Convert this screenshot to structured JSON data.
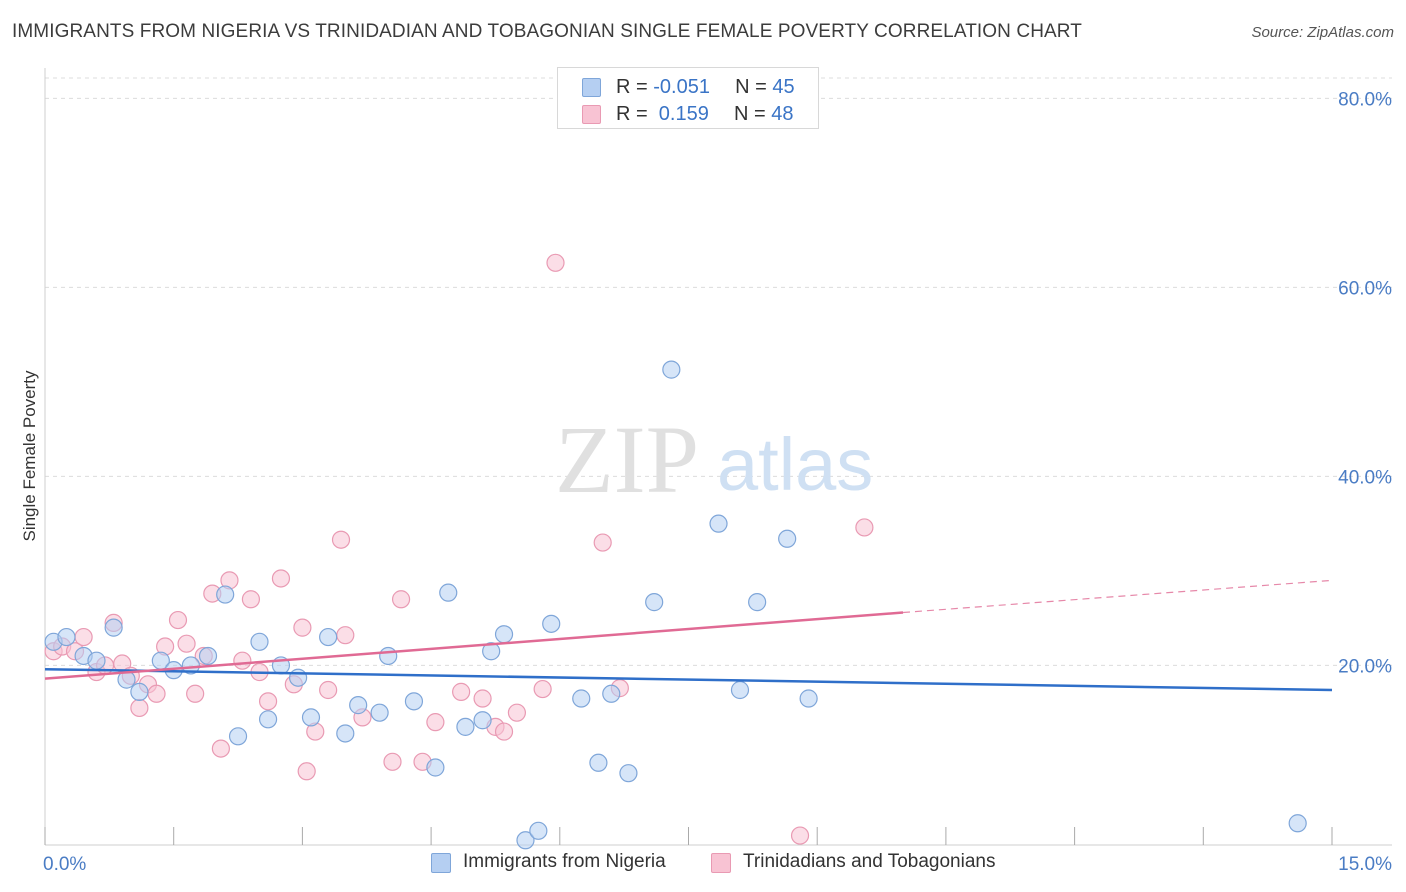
{
  "title": "IMMIGRANTS FROM NIGERIA VS TRINIDADIAN AND TOBAGONIAN SINGLE FEMALE POVERTY CORRELATION CHART",
  "source": "Source: ZipAtlas.com",
  "watermark": {
    "zip": "ZIP",
    "atlas": "atlas"
  },
  "legend": {
    "series_a": {
      "r_label": "R = ",
      "r_value": "-0.051",
      "n_label": "N = ",
      "n_value": "45"
    },
    "series_b": {
      "r_label": "R = ",
      "r_value": " 0.159",
      "n_label": "N = ",
      "n_value": "48"
    }
  },
  "colors": {
    "series_a_fill": "#b5cff2",
    "series_a_stroke": "#7fa6d9",
    "series_a_line": "#2f6fc9",
    "series_b_fill": "#f8c3d3",
    "series_b_stroke": "#e99ab3",
    "series_b_line": "#e06a94",
    "grid": "#dcdcdc",
    "axis": "#888888",
    "tick_text": "#4a7cc4"
  },
  "chart_data": {
    "type": "scatter",
    "title": "IMMIGRANTS FROM NIGERIA VS TRINIDADIAN AND TOBAGONIAN SINGLE FEMALE POVERTY CORRELATION CHART",
    "xlabel": "",
    "ylabel": "Single Female Poverty",
    "xlim": [
      0,
      15
    ],
    "ylim": [
      1,
      83
    ],
    "x_tick_labels": [
      "0.0%",
      "15.0%"
    ],
    "y_ticks": [
      20,
      40,
      60,
      80
    ],
    "y_tick_labels": [
      "20.0%",
      "40.0%",
      "60.0%",
      "80.0%"
    ],
    "grid": true,
    "legend_position": "bottom",
    "series": [
      {
        "name": "Immigrants from Nigeria",
        "color": "#b5cff2",
        "points": [
          [
            0.1,
            22.5
          ],
          [
            0.25,
            23.0
          ],
          [
            0.45,
            21.0
          ],
          [
            0.6,
            20.5
          ],
          [
            0.8,
            24.0
          ],
          [
            0.95,
            18.5
          ],
          [
            1.1,
            17.2
          ],
          [
            1.35,
            20.5
          ],
          [
            1.5,
            19.5
          ],
          [
            1.7,
            20.0
          ],
          [
            1.9,
            21.0
          ],
          [
            2.1,
            27.5
          ],
          [
            2.25,
            12.5
          ],
          [
            2.5,
            22.5
          ],
          [
            2.6,
            14.3
          ],
          [
            2.75,
            20.0
          ],
          [
            2.95,
            18.7
          ],
          [
            3.1,
            14.5
          ],
          [
            3.3,
            23.0
          ],
          [
            3.5,
            12.8
          ],
          [
            3.65,
            15.8
          ],
          [
            3.9,
            15.0
          ],
          [
            4.0,
            21.0
          ],
          [
            4.3,
            16.2
          ],
          [
            4.55,
            9.2
          ],
          [
            4.7,
            27.7
          ],
          [
            4.9,
            13.5
          ],
          [
            5.1,
            14.2
          ],
          [
            5.2,
            21.5
          ],
          [
            5.35,
            23.3
          ],
          [
            5.6,
            1.5
          ],
          [
            5.75,
            2.5
          ],
          [
            5.9,
            24.4
          ],
          [
            6.25,
            16.5
          ],
          [
            6.45,
            9.7
          ],
          [
            6.6,
            17.0
          ],
          [
            6.8,
            8.6
          ],
          [
            7.1,
            26.7
          ],
          [
            7.3,
            51.3
          ],
          [
            7.85,
            35.0
          ],
          [
            8.1,
            17.4
          ],
          [
            8.3,
            26.7
          ],
          [
            8.65,
            33.4
          ],
          [
            8.9,
            16.5
          ],
          [
            14.6,
            3.3
          ]
        ]
      },
      {
        "name": "Trinidadians and Tobagonians",
        "color": "#f8c3d3",
        "points": [
          [
            0.1,
            21.5
          ],
          [
            0.2,
            22.0
          ],
          [
            0.35,
            21.5
          ],
          [
            0.45,
            23.0
          ],
          [
            0.6,
            19.3
          ],
          [
            0.7,
            20.0
          ],
          [
            0.8,
            24.5
          ],
          [
            0.9,
            20.2
          ],
          [
            1.0,
            18.9
          ],
          [
            1.1,
            15.5
          ],
          [
            1.2,
            18.0
          ],
          [
            1.3,
            17.0
          ],
          [
            1.4,
            22.0
          ],
          [
            1.55,
            24.8
          ],
          [
            1.65,
            22.3
          ],
          [
            1.75,
            17.0
          ],
          [
            1.95,
            27.6
          ],
          [
            2.05,
            11.2
          ],
          [
            2.15,
            29.0
          ],
          [
            2.3,
            20.5
          ],
          [
            2.4,
            27.0
          ],
          [
            2.5,
            19.3
          ],
          [
            2.6,
            16.2
          ],
          [
            2.75,
            29.2
          ],
          [
            2.9,
            18.0
          ],
          [
            3.05,
            8.8
          ],
          [
            3.15,
            13.0
          ],
          [
            3.3,
            17.4
          ],
          [
            3.45,
            33.3
          ],
          [
            3.5,
            23.2
          ],
          [
            3.7,
            14.5
          ],
          [
            4.05,
            9.8
          ],
          [
            4.15,
            27.0
          ],
          [
            4.4,
            9.8
          ],
          [
            4.55,
            14.0
          ],
          [
            4.85,
            17.2
          ],
          [
            5.1,
            16.5
          ],
          [
            5.25,
            13.5
          ],
          [
            5.35,
            13.0
          ],
          [
            5.5,
            15.0
          ],
          [
            5.8,
            17.5
          ],
          [
            5.95,
            62.6
          ],
          [
            6.5,
            33.0
          ],
          [
            6.7,
            17.6
          ],
          [
            9.55,
            34.6
          ],
          [
            8.8,
            2.0
          ],
          [
            3.0,
            24.0
          ],
          [
            1.85,
            21.0
          ]
        ]
      }
    ],
    "trend_lines": [
      {
        "series": "Immigrants from Nigeria",
        "x": [
          0,
          15
        ],
        "y": [
          19.6,
          17.4
        ],
        "style": "solid"
      },
      {
        "series": "Trinidadians and Tobagonians",
        "x": [
          0,
          10.0
        ],
        "y": [
          18.6,
          25.6
        ],
        "style": "solid"
      },
      {
        "series": "Trinidadians and Tobagonians",
        "x": [
          10.0,
          15.0
        ],
        "y": [
          25.6,
          29.0
        ],
        "style": "dashed"
      }
    ]
  }
}
